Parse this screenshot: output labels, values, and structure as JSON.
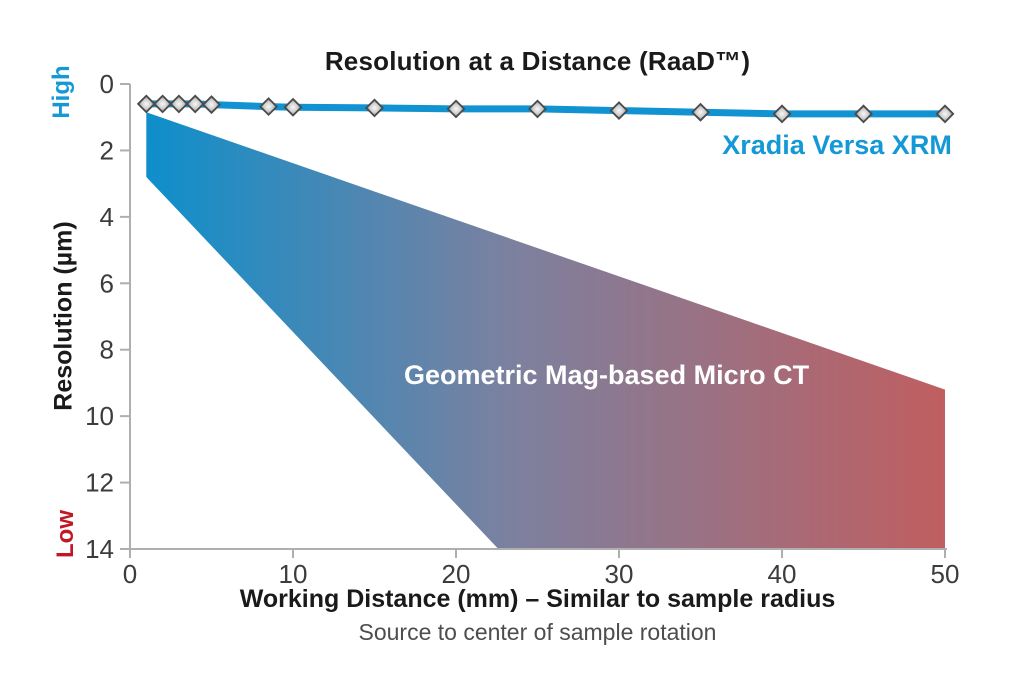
{
  "title": "Resolution at a Distance (RaaD™)",
  "annotations": {
    "line_label": "Xradia Versa XRM",
    "band_label": "Geometric Mag-based Micro CT"
  },
  "y_axis": {
    "label": "Resolution (µm)",
    "high": "High",
    "low": "Low",
    "min": 0,
    "max": 14,
    "ticks": [
      0,
      2,
      4,
      6,
      8,
      10,
      12,
      14
    ]
  },
  "x_axis": {
    "label": "Working Distance (mm) – Similar to sample radius",
    "sublabel": "Source to center of sample rotation",
    "min": 0,
    "max": 50,
    "ticks": [
      0,
      10,
      20,
      30,
      40,
      50
    ]
  },
  "colors": {
    "line_blue": "#1193D2",
    "band_blue_start": "#0E8FCB",
    "band_mid": "#7B81A0",
    "band_red_end": "#C05E60",
    "high_blue": "#1499D6",
    "low_red": "#C01824",
    "axis_gray": "#AFAFAF",
    "tick_text": "#3C3C3C",
    "subtitle_gray": "#4D4D4D",
    "marker_edge": "#4A4A4A"
  },
  "chart_data": {
    "type": "line",
    "title": "Resolution at a Distance (RaaD™)",
    "xlabel": "Working Distance (mm) – Similar to sample radius",
    "ylabel": "Resolution (µm)",
    "xlim": [
      0,
      50
    ],
    "ylim": [
      0,
      14
    ],
    "y_axis_inverted": true,
    "grid": false,
    "legend_position": "inline-annotations",
    "series": [
      {
        "name": "Xradia Versa XRM",
        "type": "line",
        "marker": "diamond",
        "x": [
          1,
          2,
          3,
          4,
          5,
          8.5,
          10,
          15,
          20,
          25,
          30,
          35,
          40,
          45,
          50
        ],
        "y": [
          0.6,
          0.6,
          0.6,
          0.6,
          0.62,
          0.68,
          0.7,
          0.72,
          0.75,
          0.75,
          0.8,
          0.85,
          0.9,
          0.9,
          0.9
        ]
      },
      {
        "name": "Geometric Mag-based Micro CT",
        "type": "band",
        "upper_edge": [
          [
            1,
            0.85
          ],
          [
            50,
            9.2
          ]
        ],
        "lower_edge": [
          [
            1,
            2.8
          ],
          [
            22.6,
            14
          ]
        ],
        "outline": [
          [
            1,
            0.85
          ],
          [
            50,
            9.2
          ],
          [
            50,
            14
          ],
          [
            22.6,
            14
          ],
          [
            1,
            2.8
          ]
        ],
        "gradient_stops": [
          "#0E8FCB",
          "#7B81A0",
          "#C05E60"
        ]
      }
    ]
  }
}
